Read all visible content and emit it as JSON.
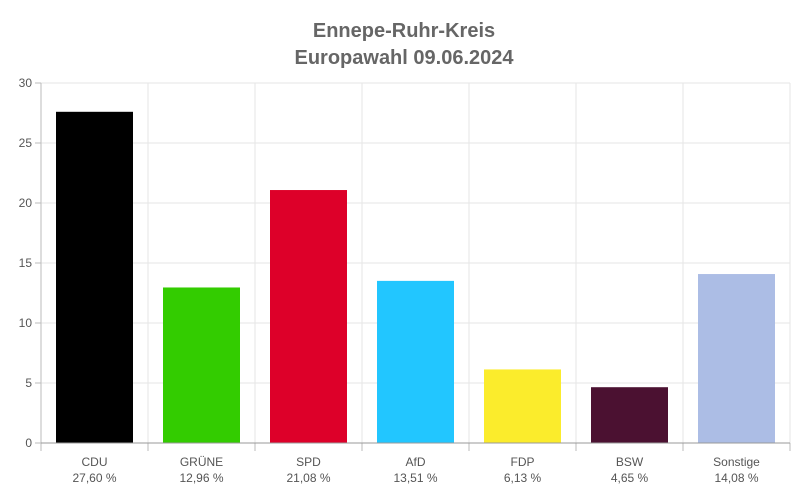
{
  "chart_data": {
    "type": "bar",
    "title": "Ennepe-Ruhr-Kreis",
    "subtitle": "Europawahl 09.06.2024",
    "xlabel": "",
    "ylabel": "",
    "ylim": [
      0,
      30
    ],
    "yticks": [
      0,
      5,
      10,
      15,
      20,
      25,
      30
    ],
    "grid": true,
    "legend": "none",
    "categories": [
      "CDU",
      "GRÜNE",
      "SPD",
      "AfD",
      "FDP",
      "BSW",
      "Sonstige"
    ],
    "values": [
      27.6,
      12.96,
      21.08,
      13.51,
      6.13,
      4.65,
      14.08
    ],
    "value_labels": [
      "27,60 %",
      "12,96 %",
      "21,08 %",
      "13,51 %",
      "6,13 %",
      "4,65 %",
      "14,08 %"
    ],
    "colors": [
      "#000000",
      "#33cc00",
      "#dd0029",
      "#22c6ff",
      "#fbec2c",
      "#4b1131",
      "#acbde5"
    ]
  }
}
